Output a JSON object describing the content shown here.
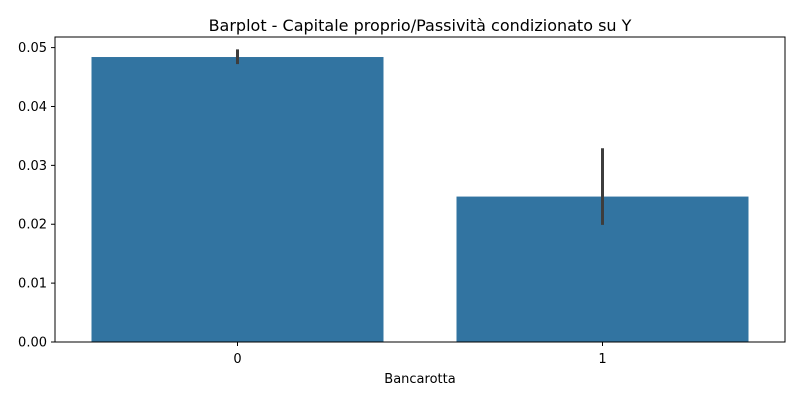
{
  "chart_data": {
    "type": "bar",
    "title": "Barplot - Capitale proprio/Passività condizionato su Y",
    "xlabel": "Bancarotta",
    "ylabel": "",
    "categories": [
      "0",
      "1"
    ],
    "values": [
      0.0484,
      0.0247
    ],
    "error_bars": [
      {
        "low": 0.0472,
        "high": 0.0497
      },
      {
        "low": 0.0199,
        "high": 0.0329
      }
    ],
    "ylim": [
      0,
      0.0518
    ],
    "yticks": [
      0.0,
      0.01,
      0.02,
      0.03,
      0.04,
      0.05
    ],
    "ytick_labels": [
      "0.00",
      "0.01",
      "0.02",
      "0.03",
      "0.04",
      "0.05"
    ],
    "grid": false,
    "legend": "none",
    "colors": {
      "bar": "#3274a1",
      "error_bar": "#3d3d3d",
      "axis": "#000000"
    }
  }
}
